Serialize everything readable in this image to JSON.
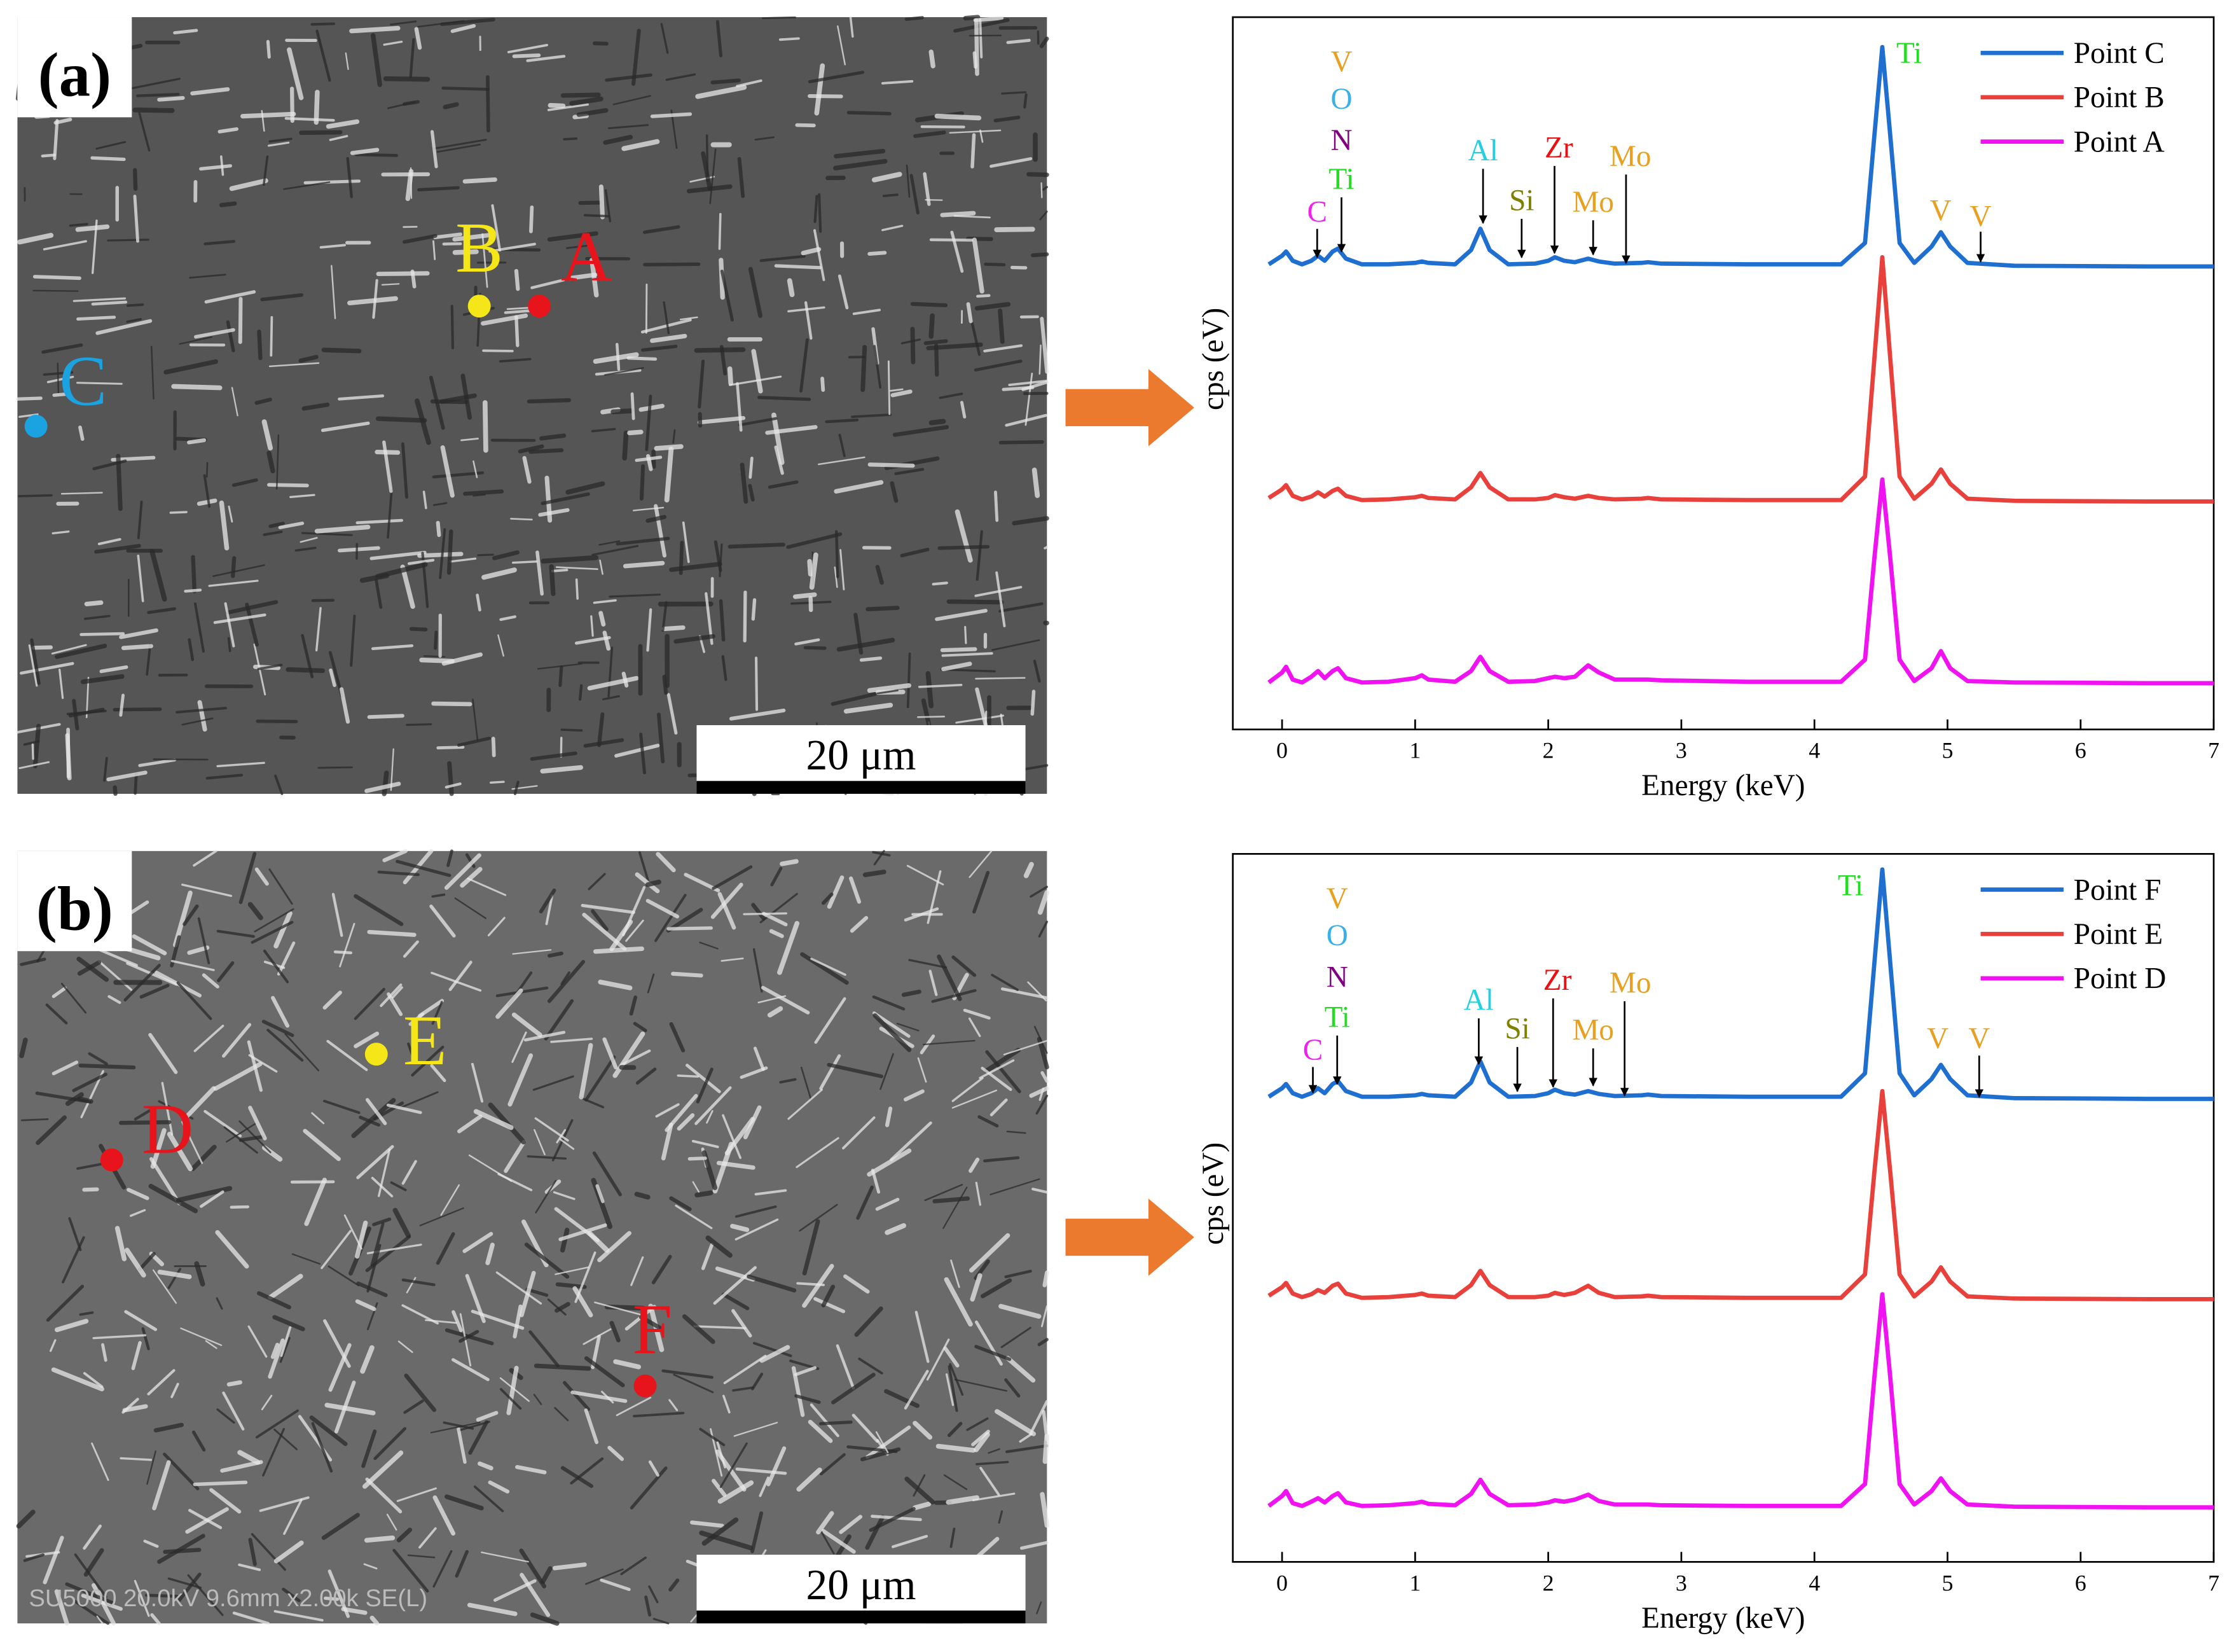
{
  "panels": [
    {
      "label": "(a)",
      "scale_bar": "20 μm",
      "points": [
        {
          "name": "A",
          "color": "#e8141c"
        },
        {
          "name": "B",
          "color": "#f5e61a"
        },
        {
          "name": "C",
          "color": "#1aa3e0"
        }
      ]
    },
    {
      "label": "(b)",
      "scale_bar": "20 μm",
      "points": [
        {
          "name": "D",
          "color": "#e8141c"
        },
        {
          "name": "E",
          "color": "#f5e61a"
        },
        {
          "name": "F",
          "color": "#e8141c"
        }
      ],
      "footer": "SU5000 20.0kV 9.6mm x2.00k SE(L)"
    }
  ],
  "chart_data": [
    {
      "type": "line",
      "xlabel": "Energy (keV)",
      "ylabel": "cps (eV)",
      "xlim": [
        -0.37,
        7
      ],
      "ylim": [
        0,
        10
      ],
      "xticks": [
        0,
        1,
        2,
        3,
        4,
        5,
        6,
        7
      ],
      "x": [
        -0.1,
        0.0,
        0.03,
        0.08,
        0.15,
        0.22,
        0.27,
        0.32,
        0.38,
        0.42,
        0.48,
        0.6,
        0.8,
        1.0,
        1.05,
        1.1,
        1.3,
        1.42,
        1.49,
        1.56,
        1.7,
        1.9,
        2.0,
        2.05,
        2.12,
        2.2,
        2.3,
        2.38,
        2.5,
        2.7,
        2.75,
        2.85,
        3.5,
        4.2,
        4.38,
        4.45,
        4.51,
        4.57,
        4.64,
        4.75,
        4.88,
        4.95,
        5.02,
        5.15,
        5.5,
        6.5,
        7.0
      ],
      "series": [
        {
          "name": "Point C",
          "color": "#1f6fd1",
          "values": [
            6.53,
            6.65,
            6.71,
            6.58,
            6.53,
            6.58,
            6.65,
            6.58,
            6.71,
            6.75,
            6.61,
            6.53,
            6.53,
            6.55,
            6.57,
            6.55,
            6.53,
            6.73,
            7.03,
            6.73,
            6.53,
            6.54,
            6.58,
            6.63,
            6.58,
            6.56,
            6.61,
            6.57,
            6.54,
            6.55,
            6.56,
            6.54,
            6.53,
            6.53,
            6.83,
            8.33,
            9.58,
            8.33,
            6.83,
            6.55,
            6.78,
            6.98,
            6.78,
            6.55,
            6.51,
            6.5,
            6.5
          ]
        },
        {
          "name": "Point B",
          "color": "#e8413c",
          "values": [
            3.25,
            3.37,
            3.43,
            3.28,
            3.23,
            3.27,
            3.33,
            3.27,
            3.35,
            3.38,
            3.28,
            3.22,
            3.23,
            3.26,
            3.28,
            3.25,
            3.23,
            3.4,
            3.6,
            3.4,
            3.23,
            3.23,
            3.25,
            3.29,
            3.26,
            3.24,
            3.28,
            3.25,
            3.23,
            3.24,
            3.25,
            3.23,
            3.22,
            3.22,
            3.55,
            5.2,
            6.63,
            5.2,
            3.55,
            3.24,
            3.45,
            3.65,
            3.45,
            3.24,
            3.21,
            3.2,
            3.2
          ]
        },
        {
          "name": "Point A",
          "color": "#f012f0",
          "values": [
            0.66,
            0.8,
            0.88,
            0.7,
            0.66,
            0.74,
            0.82,
            0.72,
            0.82,
            0.86,
            0.72,
            0.66,
            0.67,
            0.72,
            0.76,
            0.7,
            0.67,
            0.82,
            1.02,
            0.82,
            0.67,
            0.68,
            0.72,
            0.74,
            0.72,
            0.74,
            0.9,
            0.8,
            0.7,
            0.7,
            0.7,
            0.69,
            0.67,
            0.67,
            0.98,
            2.4,
            3.51,
            2.4,
            0.98,
            0.68,
            0.86,
            1.1,
            0.86,
            0.68,
            0.66,
            0.65,
            0.65
          ]
        }
      ],
      "annotations": [
        {
          "text": "V",
          "color": "#e8a020"
        },
        {
          "text": "O",
          "color": "#3ab0e8"
        },
        {
          "text": "N",
          "color": "#800080"
        },
        {
          "text": "Ti",
          "color": "#22dd22"
        },
        {
          "text": "C",
          "color": "#ee22ee"
        },
        {
          "text": "Al",
          "color": "#22d0e0"
        },
        {
          "text": "Si",
          "color": "#808000"
        },
        {
          "text": "Zr",
          "color": "#e81010"
        },
        {
          "text": "Mo",
          "color": "#e8a020"
        },
        {
          "text": "Mo",
          "color": "#e8a020"
        },
        {
          "text": "Ti",
          "color": "#22dd22"
        },
        {
          "text": "V",
          "color": "#e8a020"
        },
        {
          "text": "V",
          "color": "#e8a020"
        }
      ]
    },
    {
      "type": "line",
      "xlabel": "Energy (keV)",
      "ylabel": "cps (eV)",
      "xlim": [
        -0.37,
        7
      ],
      "ylim": [
        0,
        10
      ],
      "xticks": [
        0,
        1,
        2,
        3,
        4,
        5,
        6,
        7
      ],
      "x": [
        -0.1,
        0.0,
        0.03,
        0.08,
        0.15,
        0.22,
        0.27,
        0.32,
        0.38,
        0.42,
        0.48,
        0.6,
        0.8,
        1.0,
        1.05,
        1.1,
        1.3,
        1.42,
        1.49,
        1.56,
        1.7,
        1.9,
        2.0,
        2.05,
        2.12,
        2.2,
        2.3,
        2.38,
        2.5,
        2.7,
        2.75,
        2.85,
        3.5,
        4.2,
        4.38,
        4.45,
        4.51,
        4.57,
        4.64,
        4.75,
        4.88,
        4.95,
        5.02,
        5.15,
        5.5,
        6.5,
        7.0
      ],
      "series": [
        {
          "name": "Point F",
          "color": "#1f6fd1",
          "values": [
            6.57,
            6.69,
            6.75,
            6.62,
            6.57,
            6.62,
            6.69,
            6.62,
            6.75,
            6.79,
            6.65,
            6.57,
            6.57,
            6.59,
            6.61,
            6.59,
            6.57,
            6.77,
            7.07,
            6.77,
            6.57,
            6.58,
            6.62,
            6.67,
            6.62,
            6.6,
            6.65,
            6.61,
            6.58,
            6.59,
            6.6,
            6.58,
            6.57,
            6.57,
            6.9,
            8.45,
            9.78,
            8.45,
            6.9,
            6.59,
            6.82,
            7.02,
            6.82,
            6.59,
            6.55,
            6.54,
            6.54
          ]
        },
        {
          "name": "Point E",
          "color": "#e8413c",
          "values": [
            3.76,
            3.88,
            3.94,
            3.79,
            3.74,
            3.78,
            3.84,
            3.8,
            3.9,
            3.93,
            3.79,
            3.73,
            3.74,
            3.77,
            3.79,
            3.76,
            3.74,
            3.91,
            4.11,
            3.91,
            3.74,
            3.74,
            3.76,
            3.8,
            3.77,
            3.8,
            3.9,
            3.8,
            3.74,
            3.75,
            3.76,
            3.74,
            3.73,
            3.73,
            4.06,
            5.5,
            6.65,
            5.5,
            4.06,
            3.75,
            3.96,
            4.16,
            3.96,
            3.75,
            3.72,
            3.71,
            3.71
          ]
        },
        {
          "name": "Point D",
          "color": "#f012f0",
          "values": [
            0.79,
            0.93,
            1.0,
            0.83,
            0.79,
            0.85,
            0.9,
            0.84,
            0.93,
            0.97,
            0.84,
            0.79,
            0.8,
            0.83,
            0.85,
            0.82,
            0.8,
            0.96,
            1.16,
            0.96,
            0.8,
            0.81,
            0.84,
            0.87,
            0.85,
            0.88,
            0.95,
            0.86,
            0.81,
            0.81,
            0.81,
            0.8,
            0.79,
            0.79,
            1.1,
            2.6,
            3.78,
            2.6,
            1.1,
            0.81,
            1.0,
            1.18,
            1.0,
            0.81,
            0.78,
            0.77,
            0.77
          ]
        }
      ],
      "annotations": [
        {
          "text": "V",
          "color": "#e8a020"
        },
        {
          "text": "O",
          "color": "#3ab0e8"
        },
        {
          "text": "N",
          "color": "#800080"
        },
        {
          "text": "Ti",
          "color": "#22dd22"
        },
        {
          "text": "C",
          "color": "#ee22ee"
        },
        {
          "text": "Al",
          "color": "#22d0e0"
        },
        {
          "text": "Si",
          "color": "#808000"
        },
        {
          "text": "Zr",
          "color": "#e81010"
        },
        {
          "text": "Mo",
          "color": "#e8a020"
        },
        {
          "text": "Mo",
          "color": "#e8a020"
        },
        {
          "text": "Ti",
          "color": "#22dd22"
        },
        {
          "text": "V",
          "color": "#e8a020"
        },
        {
          "text": "V",
          "color": "#e8a020"
        }
      ]
    }
  ]
}
